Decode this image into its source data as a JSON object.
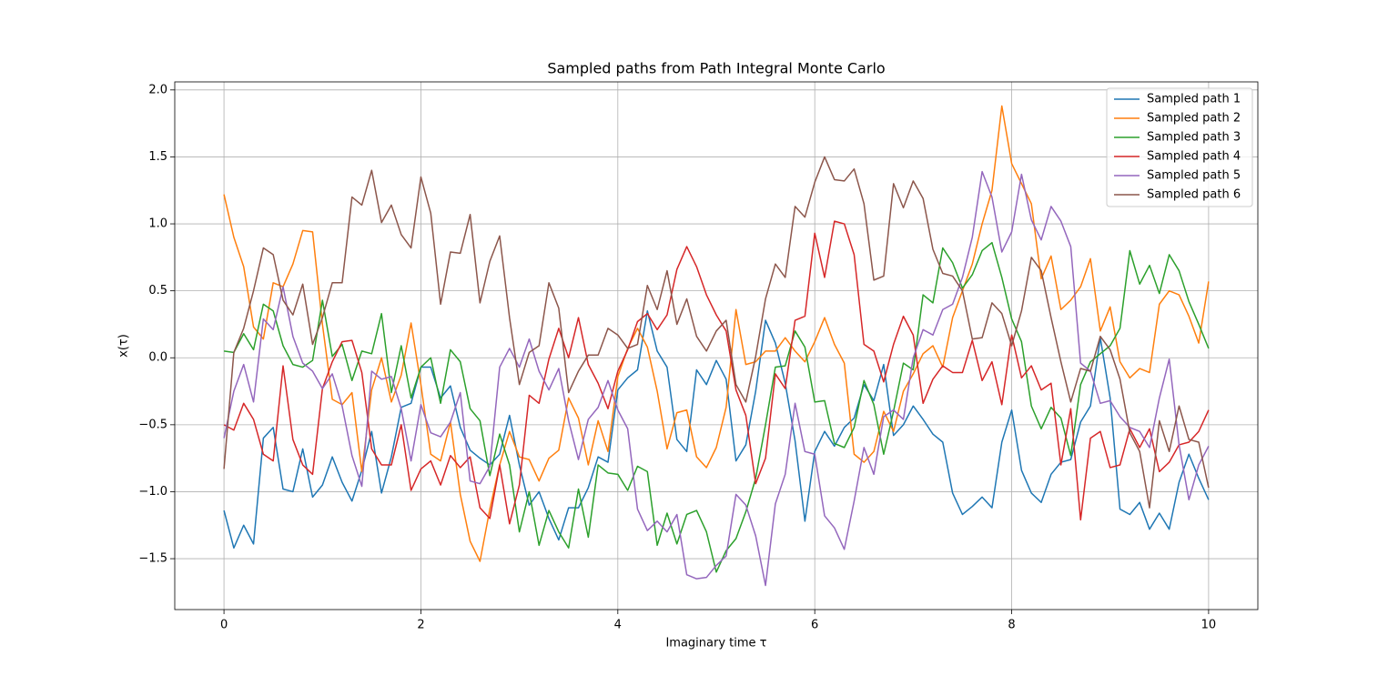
{
  "chart_data": {
    "type": "line",
    "title": "Sampled paths from Path Integral Monte Carlo",
    "xlabel": "Imaginary time τ",
    "ylabel": "x(τ)",
    "x": [
      0,
      0.1,
      0.2,
      0.3,
      0.4,
      0.5,
      0.6,
      0.7,
      0.8,
      0.9,
      1,
      1.1,
      1.2,
      1.3,
      1.4,
      1.5,
      1.6,
      1.7,
      1.8,
      1.9,
      2,
      2.1,
      2.2,
      2.3,
      2.4,
      2.5,
      2.6,
      2.7,
      2.8,
      2.9,
      3,
      3.1,
      3.2,
      3.3,
      3.4,
      3.5,
      3.6,
      3.7,
      3.8,
      3.9,
      4,
      4.1,
      4.2,
      4.3,
      4.4,
      4.5,
      4.6,
      4.7,
      4.8,
      4.9,
      5,
      5.1,
      5.2,
      5.3,
      5.4,
      5.5,
      5.6,
      5.7,
      5.8,
      5.9,
      6,
      6.1,
      6.2,
      6.3,
      6.4,
      6.5,
      6.6,
      6.7,
      6.8,
      6.9,
      7,
      7.1,
      7.2,
      7.3,
      7.4,
      7.5,
      7.6,
      7.7,
      7.8,
      7.9,
      8,
      8.1,
      8.2,
      8.3,
      8.4,
      8.5,
      8.6,
      8.7,
      8.8,
      8.9,
      9,
      9.1,
      9.2,
      9.3,
      9.4,
      9.5,
      9.6,
      9.7,
      9.8,
      9.9,
      10
    ],
    "series": [
      {
        "name": "Sampled path 1",
        "color": "#1f77b4",
        "values": [
          -1.14,
          -1.42,
          -1.25,
          -1.39,
          -0.6,
          -0.52,
          -0.98,
          -1.0,
          -0.68,
          -1.04,
          -0.95,
          -0.74,
          -0.93,
          -1.07,
          -0.84,
          -0.55,
          -1.01,
          -0.74,
          -0.37,
          -0.34,
          -0.07,
          -0.07,
          -0.3,
          -0.21,
          -0.52,
          -0.69,
          -0.75,
          -0.8,
          -0.72,
          -0.43,
          -0.8,
          -1.1,
          -1.0,
          -1.2,
          -1.36,
          -1.12,
          -1.12,
          -0.97,
          -0.74,
          -0.78,
          -0.24,
          -0.15,
          -0.09,
          0.35,
          0.05,
          -0.07,
          -0.61,
          -0.7,
          -0.09,
          -0.2,
          -0.02,
          -0.16,
          -0.77,
          -0.65,
          -0.25,
          0.28,
          0.11,
          -0.19,
          -0.62,
          -1.22,
          -0.7,
          -0.55,
          -0.66,
          -0.52,
          -0.45,
          -0.2,
          -0.32,
          -0.05,
          -0.58,
          -0.5,
          -0.36,
          -0.46,
          -0.57,
          -0.63,
          -1.01,
          -1.17,
          -1.11,
          -1.04,
          -1.12,
          -0.63,
          -0.39,
          -0.84,
          -1.01,
          -1.08,
          -0.87,
          -0.78,
          -0.76,
          -0.48,
          -0.36,
          0.15,
          -0.3,
          -1.13,
          -1.17,
          -1.08,
          -1.28,
          -1.16,
          -1.28,
          -0.93,
          -0.72,
          -0.9,
          -1.06
        ]
      },
      {
        "name": "Sampled path 2",
        "color": "#ff7f0e",
        "values": [
          1.22,
          0.9,
          0.68,
          0.23,
          0.14,
          0.56,
          0.53,
          0.7,
          0.95,
          0.94,
          0.25,
          -0.31,
          -0.35,
          -0.26,
          -0.85,
          -0.24,
          0.0,
          -0.33,
          -0.13,
          0.26,
          -0.2,
          -0.72,
          -0.77,
          -0.48,
          -1.02,
          -1.37,
          -1.52,
          -1.13,
          -0.8,
          -0.55,
          -0.74,
          -0.76,
          -0.92,
          -0.75,
          -0.69,
          -0.3,
          -0.45,
          -0.8,
          -0.47,
          -0.7,
          -0.14,
          0.07,
          0.22,
          0.08,
          -0.25,
          -0.68,
          -0.41,
          -0.39,
          -0.74,
          -0.82,
          -0.67,
          -0.37,
          0.36,
          -0.05,
          -0.03,
          0.05,
          0.05,
          0.15,
          0.05,
          -0.03,
          0.12,
          0.3,
          0.1,
          -0.04,
          -0.72,
          -0.78,
          -0.7,
          -0.4,
          -0.55,
          -0.25,
          -0.12,
          0.03,
          0.09,
          -0.07,
          0.3,
          0.5,
          0.7,
          1.0,
          1.25,
          1.88,
          1.45,
          1.3,
          1.15,
          0.59,
          0.76,
          0.36,
          0.43,
          0.53,
          0.74,
          0.2,
          0.38,
          -0.03,
          -0.15,
          -0.08,
          -0.11,
          0.4,
          0.5,
          0.47,
          0.31,
          0.11,
          0.57
        ]
      },
      {
        "name": "Sampled path 3",
        "color": "#2ca02c",
        "values": [
          0.05,
          0.04,
          0.18,
          0.06,
          0.4,
          0.35,
          0.09,
          -0.05,
          -0.07,
          -0.02,
          0.43,
          0.01,
          0.1,
          -0.17,
          0.05,
          0.03,
          0.33,
          -0.26,
          0.09,
          -0.3,
          -0.07,
          0.0,
          -0.34,
          0.06,
          -0.03,
          -0.38,
          -0.47,
          -0.88,
          -0.57,
          -0.8,
          -1.3,
          -1.0,
          -1.4,
          -1.14,
          -1.3,
          -1.42,
          -0.98,
          -1.34,
          -0.8,
          -0.86,
          -0.87,
          -0.99,
          -0.81,
          -0.85,
          -1.4,
          -1.16,
          -1.39,
          -1.17,
          -1.14,
          -1.3,
          -1.6,
          -1.44,
          -1.35,
          -1.15,
          -0.9,
          -0.5,
          -0.07,
          -0.06,
          0.2,
          0.08,
          -0.33,
          -0.32,
          -0.64,
          -0.67,
          -0.52,
          -0.17,
          -0.35,
          -0.72,
          -0.4,
          -0.04,
          -0.09,
          0.47,
          0.41,
          0.82,
          0.71,
          0.52,
          0.62,
          0.8,
          0.86,
          0.6,
          0.29,
          0.12,
          -0.36,
          -0.53,
          -0.37,
          -0.45,
          -0.73,
          -0.2,
          -0.03,
          0.03,
          0.09,
          0.22,
          0.8,
          0.55,
          0.69,
          0.48,
          0.77,
          0.65,
          0.42,
          0.25,
          0.07
        ]
      },
      {
        "name": "Sampled path 4",
        "color": "#d62728",
        "values": [
          -0.5,
          -0.54,
          -0.34,
          -0.46,
          -0.72,
          -0.77,
          -0.06,
          -0.61,
          -0.8,
          -0.87,
          -0.23,
          -0.03,
          0.12,
          0.13,
          -0.11,
          -0.68,
          -0.8,
          -0.8,
          -0.5,
          -0.99,
          -0.83,
          -0.77,
          -0.95,
          -0.73,
          -0.82,
          -0.74,
          -1.12,
          -1.2,
          -0.8,
          -1.24,
          -0.95,
          -0.28,
          -0.34,
          -0.01,
          0.22,
          0.0,
          0.3,
          -0.05,
          -0.19,
          -0.38,
          -0.1,
          0.06,
          0.27,
          0.33,
          0.21,
          0.32,
          0.66,
          0.83,
          0.68,
          0.47,
          0.32,
          0.2,
          -0.24,
          -0.43,
          -0.94,
          -0.75,
          -0.12,
          -0.23,
          0.28,
          0.31,
          0.93,
          0.6,
          1.02,
          1.0,
          0.77,
          0.1,
          0.05,
          -0.18,
          0.1,
          0.31,
          0.17,
          -0.34,
          -0.16,
          -0.06,
          -0.11,
          -0.11,
          0.13,
          -0.17,
          -0.03,
          -0.35,
          0.17,
          -0.15,
          -0.06,
          -0.24,
          -0.19,
          -0.8,
          -0.38,
          -1.21,
          -0.6,
          -0.55,
          -0.82,
          -0.8,
          -0.53,
          -0.67,
          -0.53,
          -0.85,
          -0.78,
          -0.65,
          -0.63,
          -0.55,
          -0.39
        ]
      },
      {
        "name": "Sampled path 5",
        "color": "#9467bd",
        "values": [
          -0.6,
          -0.25,
          -0.05,
          -0.33,
          0.29,
          0.21,
          0.53,
          0.16,
          -0.04,
          -0.1,
          -0.23,
          -0.12,
          -0.36,
          -0.73,
          -0.96,
          -0.1,
          -0.16,
          -0.14,
          -0.38,
          -0.77,
          -0.35,
          -0.56,
          -0.59,
          -0.48,
          -0.26,
          -0.92,
          -0.94,
          -0.81,
          -0.07,
          0.07,
          -0.07,
          0.14,
          -0.1,
          -0.24,
          -0.08,
          -0.47,
          -0.76,
          -0.46,
          -0.37,
          -0.17,
          -0.39,
          -0.53,
          -1.13,
          -1.29,
          -1.22,
          -1.3,
          -1.17,
          -1.62,
          -1.65,
          -1.64,
          -1.55,
          -1.48,
          -1.02,
          -1.1,
          -1.33,
          -1.7,
          -1.09,
          -0.87,
          -0.34,
          -0.7,
          -0.72,
          -1.18,
          -1.27,
          -1.43,
          -1.07,
          -0.67,
          -0.87,
          -0.44,
          -0.39,
          -0.46,
          0.0,
          0.21,
          0.17,
          0.36,
          0.4,
          0.6,
          0.9,
          1.39,
          1.2,
          0.79,
          0.94,
          1.37,
          1.03,
          0.88,
          1.13,
          1.02,
          0.83,
          -0.04,
          -0.1,
          -0.34,
          -0.32,
          -0.44,
          -0.52,
          -0.55,
          -0.67,
          -0.3,
          -0.01,
          -0.65,
          -1.06,
          -0.8,
          -0.66
        ]
      },
      {
        "name": "Sampled path 6",
        "color": "#8c564b",
        "values": [
          -0.83,
          0.04,
          0.22,
          0.5,
          0.82,
          0.77,
          0.43,
          0.32,
          0.55,
          0.1,
          0.3,
          0.56,
          0.56,
          1.2,
          1.14,
          1.4,
          1.01,
          1.14,
          0.92,
          0.82,
          1.35,
          1.08,
          0.4,
          0.79,
          0.78,
          1.07,
          0.41,
          0.72,
          0.91,
          0.3,
          -0.2,
          0.04,
          0.09,
          0.56,
          0.37,
          -0.26,
          -0.1,
          0.02,
          0.02,
          0.22,
          0.17,
          0.07,
          0.1,
          0.54,
          0.36,
          0.65,
          0.25,
          0.44,
          0.16,
          0.05,
          0.2,
          0.28,
          -0.2,
          -0.33,
          0.01,
          0.44,
          0.7,
          0.6,
          1.13,
          1.05,
          1.31,
          1.5,
          1.33,
          1.32,
          1.41,
          1.15,
          0.58,
          0.61,
          1.3,
          1.12,
          1.32,
          1.19,
          0.81,
          0.63,
          0.61,
          0.5,
          0.14,
          0.15,
          0.41,
          0.33,
          0.09,
          0.35,
          0.75,
          0.65,
          0.3,
          -0.03,
          -0.33,
          -0.08,
          -0.1,
          0.16,
          0.06,
          -0.16,
          -0.56,
          -0.7,
          -1.12,
          -0.47,
          -0.7,
          -0.36,
          -0.61,
          -0.63,
          -0.97
        ]
      }
    ],
    "xlim": [
      -0.5,
      10.5
    ],
    "ylim": [
      -1.88,
      2.06
    ],
    "xticks": [
      0,
      2,
      4,
      6,
      8,
      10
    ],
    "yticks": [
      {
        "value": -1.5,
        "label": "−1.5"
      },
      {
        "value": -1.0,
        "label": "−1.0"
      },
      {
        "value": -0.5,
        "label": "−0.5"
      },
      {
        "value": 0.0,
        "label": "0.0"
      },
      {
        "value": 0.5,
        "label": "0.5"
      },
      {
        "value": 1.0,
        "label": "1.0"
      },
      {
        "value": 1.5,
        "label": "1.5"
      },
      {
        "value": 2.0,
        "label": "2.0"
      }
    ],
    "grid": true,
    "legend": "upper right"
  }
}
